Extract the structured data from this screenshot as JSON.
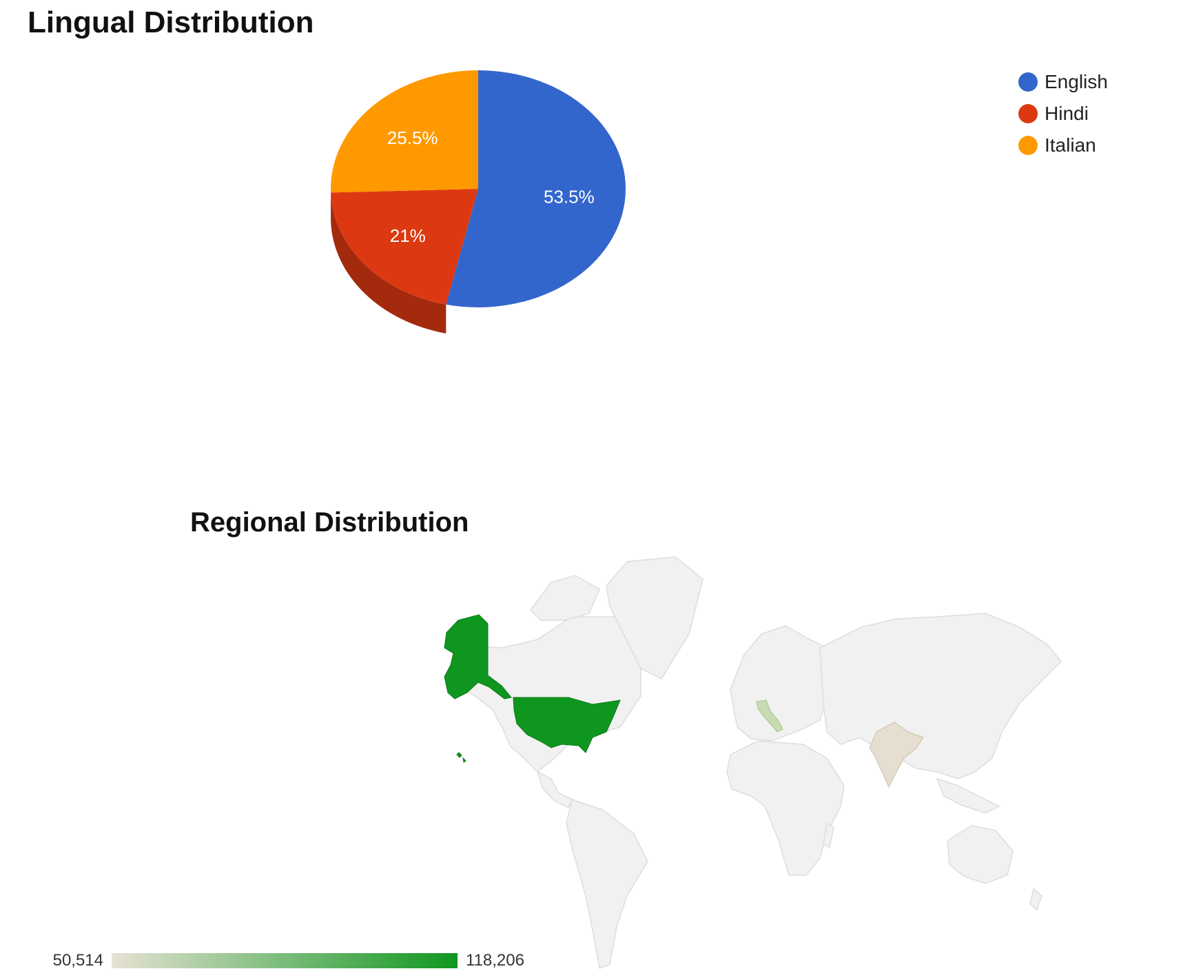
{
  "titles": {
    "lingual": "Lingual Distribution",
    "regional": "Regional Distribution"
  },
  "chart_data": [
    {
      "type": "pie",
      "title": "Lingual Distribution",
      "is3D": true,
      "legend_position": "top-right",
      "slices": [
        {
          "label": "English",
          "value": 53.5,
          "display": "53.5%",
          "color": "#3366cc",
          "shade": "#274f9e"
        },
        {
          "label": "Hindi",
          "value": 21,
          "display": "21%",
          "color": "#dc3912",
          "shade": "#a42a0d"
        },
        {
          "label": "Italian",
          "value": 25.5,
          "display": "25.5%",
          "color": "#ff9900",
          "shade": "#c27400"
        }
      ]
    },
    {
      "type": "heatmap",
      "subtype": "geo",
      "title": "Regional Distribution",
      "color_axis": {
        "min": 50514,
        "max": 118206,
        "min_label": "50,514",
        "max_label": "118,206",
        "min_color": "#e6e2d4",
        "max_color": "#0f961f"
      },
      "regions": [
        {
          "country": "United States",
          "value": 118206,
          "color": "#0f961f"
        },
        {
          "country": "Italy",
          "value": 60000,
          "color": "#c7dbb0"
        },
        {
          "country": "India",
          "value": 50514,
          "color": "#e6ded0"
        }
      ]
    }
  ]
}
